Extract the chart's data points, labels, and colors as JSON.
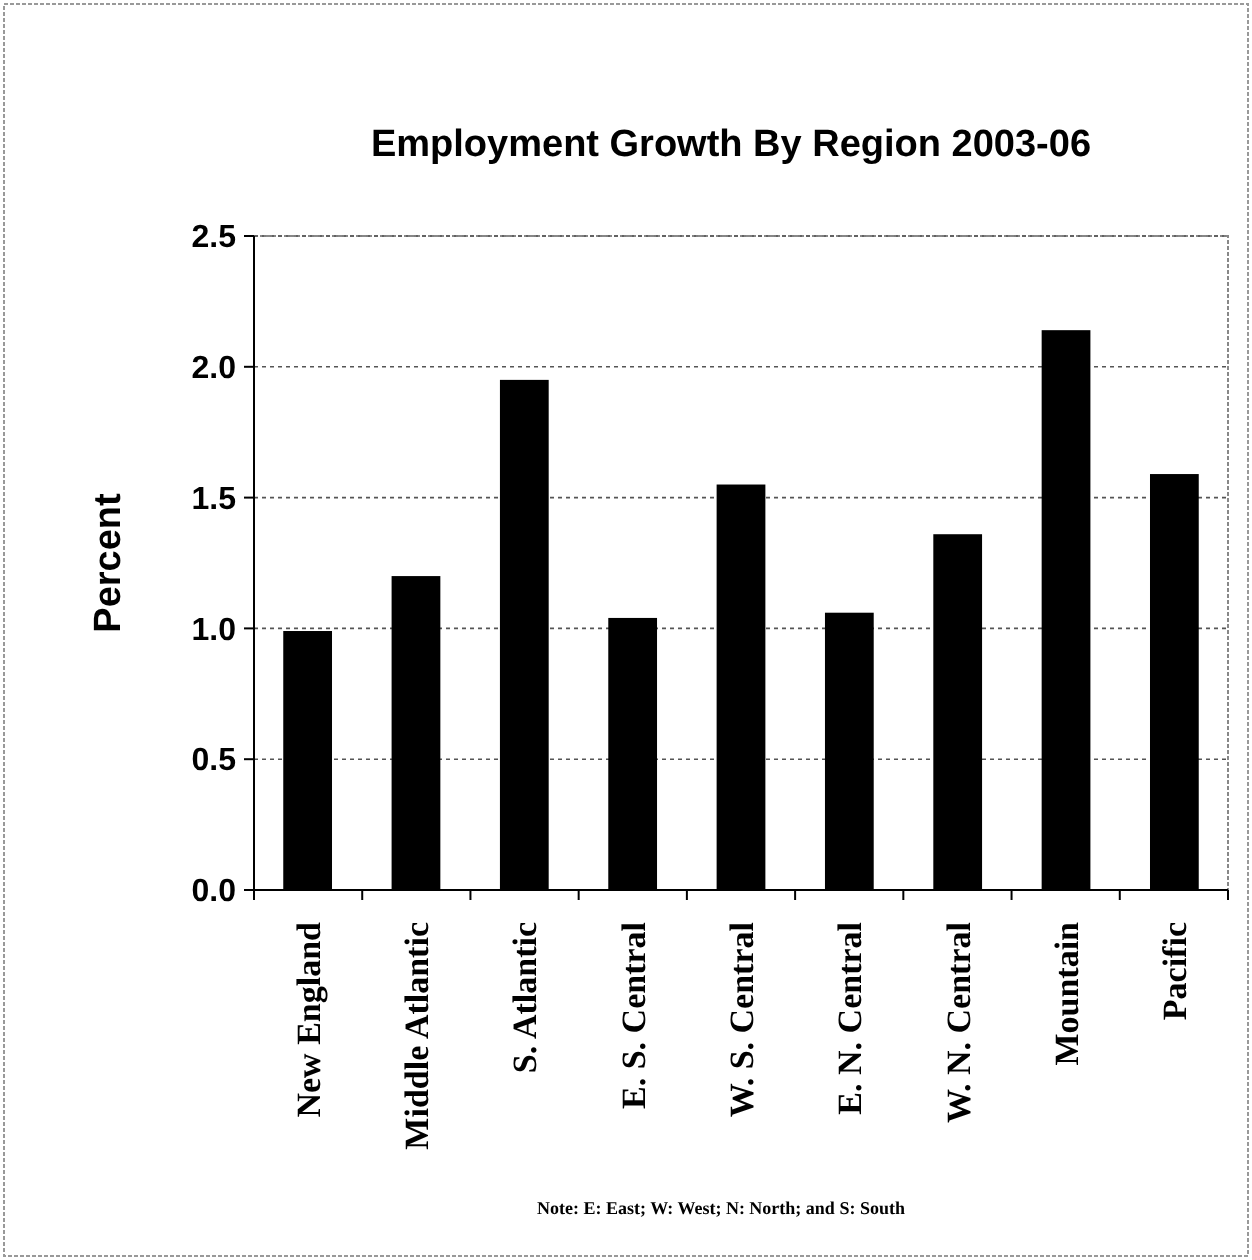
{
  "chart_data": {
    "type": "bar",
    "title": "Employment Growth By Region 2003-06",
    "ylabel": "Percent",
    "categories": [
      "New England",
      "Middle Atlantic",
      "S. Atlantic",
      "E. S. Central",
      "W. S. Central",
      "E. N. Central",
      "W. N. Central",
      "Mountain",
      "Pacific"
    ],
    "values": [
      0.99,
      1.2,
      1.95,
      1.04,
      1.55,
      1.06,
      1.36,
      2.14,
      1.59
    ],
    "color": "#000000",
    "ylim": [
      0,
      2.5
    ],
    "yticks": [
      {
        "value": 0,
        "label": "0.0"
      },
      {
        "value": 0.5,
        "label": "0.5"
      },
      {
        "value": 1,
        "label": "1.0"
      },
      {
        "value": 1.5,
        "label": "1.5"
      },
      {
        "value": 2,
        "label": "2.0"
      },
      {
        "value": 2.5,
        "label": "2.5"
      }
    ],
    "grid": "y",
    "annotations": [
      "Note: E: East; W: West; N: North; and S: South"
    ]
  }
}
